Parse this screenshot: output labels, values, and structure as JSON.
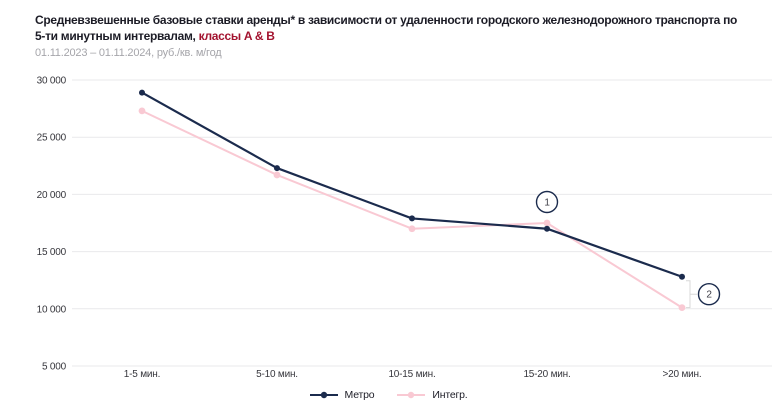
{
  "header": {
    "title_line1": "Средневзвешенные базовые ставки аренды* в зависимости от удаленности городского железнодорожного транспорта по",
    "title_line2": "5-ти минутным интервалам,",
    "title_line2_highlight": "классы A & B",
    "subtitle": "01.11.2023 – 01.11.2024, руб./кв. м/год"
  },
  "chart_data": {
    "type": "line",
    "categories": [
      "1-5 мин.",
      "5-10 мин.",
      "10-15 мин.",
      "15-20 мин.",
      ">20 мин."
    ],
    "series": [
      {
        "name": "Метро",
        "color": "#1b2b4d",
        "values": [
          28900,
          22300,
          17900,
          17000,
          12800
        ]
      },
      {
        "name": "Интегр.",
        "color": "#f9c9d3",
        "values": [
          27300,
          21700,
          17000,
          17500,
          10100
        ]
      }
    ],
    "ylim": [
      5000,
      30000
    ],
    "yticks": [
      30000,
      25000,
      20000,
      15000,
      10000,
      5000
    ],
    "ytick_labels": [
      "30 000",
      "25 000",
      "20 000",
      "15 000",
      "10 000",
      "5 000"
    ],
    "grid": "horizontal",
    "legend_position": "bottom",
    "gridline_color": "#e9e9eb",
    "annotations": [
      {
        "label": "1",
        "type": "circle-callout",
        "series": "Интегр.",
        "category_index": 3,
        "placement": "above"
      },
      {
        "label": "2",
        "type": "bracket-callout",
        "category_index": 4,
        "between_series": [
          "Метро",
          "Интегр."
        ],
        "placement": "right"
      }
    ]
  }
}
